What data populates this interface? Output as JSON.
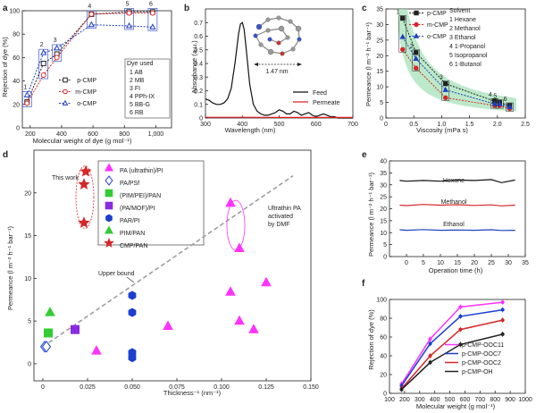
{
  "panel_labels": [
    "a",
    "b",
    "c",
    "d",
    "e",
    "f"
  ],
  "colors": {
    "pCMP": "#222222",
    "mCMP": "#d62728",
    "oCMP": "#1f3fbf",
    "pink": "#ff33ff",
    "blue": "#1b3fcf",
    "green": "#33cc33",
    "purple": "#8a2be2",
    "red": "#d62728",
    "band": "#9fe0b4"
  },
  "chart_data": [
    {
      "id": "a",
      "type": "line",
      "xlabel": "Molecular weight of dye (g mol⁻¹)",
      "ylabel": "Rejection of dye (%)",
      "xlim": [
        150,
        1100
      ],
      "ylim": [
        0,
        100
      ],
      "xticks": [
        200,
        400,
        600,
        800,
        1000
      ],
      "xtick_labels": [
        "200",
        "400",
        "600",
        "800",
        "1,000"
      ],
      "yticks": [
        0,
        20,
        40,
        60,
        80,
        100
      ],
      "dye_x": [
        180,
        285,
        370,
        590,
        830,
        980
      ],
      "dye_numbers": [
        "1",
        "2",
        "3",
        "4",
        "5",
        "6"
      ],
      "legend_title": "Dye used",
      "dye_list": [
        "1 AB",
        "2 MB",
        "3 FI",
        "4 PPh-IX",
        "5 BB-G",
        "6 RB"
      ],
      "series": [
        {
          "name": "p-CMP",
          "color": "#222222",
          "marker": "square",
          "values": [
            22,
            55,
            63,
            97,
            99,
            99
          ]
        },
        {
          "name": "m-CMP",
          "color": "#d62728",
          "marker": "circle",
          "values": [
            21,
            45,
            60,
            97,
            98,
            98
          ]
        },
        {
          "name": "o-CMP",
          "color": "#1f3fbf",
          "marker": "triangle",
          "values": [
            28,
            64,
            68,
            88,
            87,
            86
          ]
        }
      ]
    },
    {
      "id": "b",
      "type": "line",
      "xlabel": "Wavelength (nm)",
      "ylabel": "Absorbance (a.u.)",
      "xlim": [
        300,
        700
      ],
      "ylim": [
        0,
        0.8
      ],
      "xticks": [
        300,
        400,
        500,
        600,
        700
      ],
      "yticks": [
        0,
        0.1,
        0.2,
        0.3,
        0.4,
        0.5,
        0.6,
        0.7
      ],
      "annotation": "1.47 nm",
      "series": [
        {
          "name": "Feed",
          "color": "#111111",
          "x": [
            300,
            310,
            320,
            330,
            340,
            350,
            360,
            370,
            380,
            390,
            395,
            400,
            405,
            410,
            420,
            430,
            440,
            450,
            460,
            470,
            480,
            490,
            500,
            510,
            520,
            530,
            540,
            550,
            560,
            570,
            580,
            590,
            600,
            610,
            620,
            630,
            640,
            650,
            660,
            680,
            700
          ],
          "values": [
            0.14,
            0.13,
            0.11,
            0.1,
            0.1,
            0.11,
            0.14,
            0.22,
            0.4,
            0.62,
            0.69,
            0.7,
            0.65,
            0.52,
            0.25,
            0.1,
            0.05,
            0.03,
            0.02,
            0.02,
            0.03,
            0.04,
            0.06,
            0.05,
            0.03,
            0.03,
            0.05,
            0.04,
            0.02,
            0.03,
            0.04,
            0.02,
            0.01,
            0.02,
            0.03,
            0.02,
            0.01,
            0.01,
            0.0,
            0.0,
            0.0
          ]
        },
        {
          "name": "Permeate",
          "color": "#e02020",
          "x": [
            300,
            400,
            500,
            600,
            700
          ],
          "values": [
            0.005,
            0.005,
            0.004,
            0.004,
            0.004
          ]
        }
      ]
    },
    {
      "id": "c",
      "type": "scatter",
      "xlabel": "Viscosity (mPa s)",
      "ylabel": "Permeance (l m⁻² h⁻¹ bar⁻¹)",
      "xlim": [
        0,
        2.5
      ],
      "ylim": [
        0,
        35
      ],
      "xticks": [
        0,
        0.5,
        1.0,
        1.5,
        2.0,
        2.5
      ],
      "xtick_labels": [
        "0",
        "0.5",
        "1.0",
        "1.5",
        "2.0",
        "2.5"
      ],
      "yticks": [
        0,
        5,
        10,
        15,
        20,
        25,
        30,
        35
      ],
      "legend_title": "Solvent",
      "solvent_list": [
        "1 Hexane",
        "2 Methanol",
        "3 Ethanol",
        "4 1-Propanol",
        "5 Isopropanol",
        "6 1-Butanol"
      ],
      "solvent_x": [
        0.3,
        0.54,
        1.07,
        1.95,
        2.04,
        2.22
      ],
      "solvent_numbers": [
        "1",
        "2",
        "3",
        "4",
        "5",
        "6"
      ],
      "series": [
        {
          "name": "p-CMP",
          "color": "#222222",
          "values": [
            32,
            21,
            11,
            5.4,
            5,
            4
          ]
        },
        {
          "name": "m-CMP",
          "color": "#d62728",
          "values": [
            22,
            16,
            6.5,
            4,
            4,
            3
          ]
        },
        {
          "name": "o-CMP",
          "color": "#1f3fbf",
          "values": [
            26,
            19,
            9,
            4.5,
            4.5,
            3.5
          ]
        }
      ],
      "fit_curve": {
        "a": 9.8,
        "b": -0.2
      }
    },
    {
      "id": "d",
      "type": "scatter",
      "xlabel": "Thickness⁻¹ (nm⁻¹)",
      "ylabel": "Permeance (l m⁻² h⁻¹ bar⁻¹)",
      "xlim": [
        -0.005,
        0.15
      ],
      "ylim": [
        -2,
        25
      ],
      "xticks": [
        0,
        0.025,
        0.05,
        0.075,
        0.1,
        0.125,
        0.15
      ],
      "xtick_labels": [
        "0",
        "0.025",
        "0.050",
        "0.075",
        "0.100",
        "0.125",
        "0.150"
      ],
      "yticks": [
        0,
        5,
        10,
        15,
        20
      ],
      "annotations": [
        "This work",
        "Ultrathin PA activated by DMF",
        "Upper bound"
      ],
      "upper_bound": [
        [
          0,
          2
        ],
        [
          0.14,
          22
        ]
      ],
      "series": [
        {
          "name": "PA (ultrathin)/PI",
          "marker": "triangle",
          "color": "#ff33ff",
          "points": [
            [
              0.03,
              1.5
            ],
            [
              0.07,
              4.4
            ],
            [
              0.105,
              8.4
            ],
            [
              0.11,
              5
            ],
            [
              0.118,
              4
            ],
            [
              0.125,
              9.5
            ],
            [
              0.11,
              13.5
            ],
            [
              0.105,
              18.8
            ]
          ]
        },
        {
          "name": "PA/PSf",
          "marker": "diamond",
          "color": "#1b3fcf",
          "points": [
            [
              0.001,
              2
            ],
            [
              0.002,
              2
            ]
          ]
        },
        {
          "name": "(PIM/PEI)/PAN",
          "marker": "square",
          "color": "#33cc33",
          "points": [
            [
              0.003,
              3.6
            ]
          ]
        },
        {
          "name": "(PA/MOF)/PI",
          "marker": "square",
          "color": "#8a2be2",
          "points": [
            [
              0.018,
              4
            ]
          ]
        },
        {
          "name": "PAR/PI",
          "marker": "hexagon",
          "color": "#1b3fcf",
          "points": [
            [
              0.05,
              8
            ],
            [
              0.05,
              6
            ],
            [
              0.05,
              1.3
            ],
            [
              0.05,
              0.7
            ]
          ]
        },
        {
          "name": "PIM/PAN",
          "marker": "triangle",
          "color": "#33cc33",
          "points": [
            [
              0.004,
              6
            ]
          ]
        },
        {
          "name": "CMP/PAN",
          "marker": "star",
          "color": "#d62728",
          "points": [
            [
              0.024,
              22.5
            ],
            [
              0.023,
              21
            ],
            [
              0.023,
              16.5
            ]
          ]
        }
      ]
    },
    {
      "id": "e",
      "type": "line",
      "xlabel": "Operation time (h)",
      "ylabel": "Permeance (l m⁻² h⁻¹ bar⁻¹)",
      "xlim": [
        -5,
        35
      ],
      "ylim": [
        0,
        40
      ],
      "xticks": [
        0,
        5,
        10,
        15,
        20,
        25,
        30,
        35
      ],
      "yticks": [
        0,
        5,
        10,
        15,
        20,
        25,
        30,
        35,
        40
      ],
      "series": [
        {
          "name": "Hexane",
          "color": "#111111",
          "x": [
            -2,
            0,
            5,
            10,
            15,
            20,
            25,
            28,
            32
          ],
          "values": [
            31.8,
            31.5,
            31.8,
            31.5,
            32,
            31.8,
            32.2,
            30.9,
            32
          ]
        },
        {
          "name": "Methanol",
          "color": "#d62728",
          "x": [
            -2,
            0,
            5,
            10,
            15,
            20,
            25,
            28,
            32
          ],
          "values": [
            21.5,
            21.3,
            21.8,
            21.5,
            21.7,
            21.4,
            21.6,
            21.2,
            21.5
          ]
        },
        {
          "name": "Ethanol",
          "color": "#1f3fbf",
          "x": [
            -2,
            0,
            5,
            10,
            15,
            20,
            25,
            28,
            32
          ],
          "values": [
            11.2,
            11,
            11.3,
            11,
            11.1,
            11,
            11.2,
            10.9,
            11
          ]
        }
      ]
    },
    {
      "id": "f",
      "type": "line",
      "xlabel": "Molecular weight (g mol⁻¹)",
      "ylabel": "Rejection of dye (%)",
      "xlim": [
        100,
        1000
      ],
      "ylim": [
        0,
        100
      ],
      "xticks": [
        100,
        200,
        300,
        400,
        500,
        600,
        700,
        800,
        900,
        1000
      ],
      "yticks": [
        0,
        20,
        40,
        60,
        80,
        100
      ],
      "x": [
        180,
        370,
        570,
        850
      ],
      "series": [
        {
          "name": "p-CMP-OOC11",
          "color": "#ff33ff",
          "values": [
            10,
            58,
            92,
            97
          ]
        },
        {
          "name": "p-CMP-OOC7",
          "color": "#1b3fcf",
          "values": [
            8,
            53,
            82,
            89
          ]
        },
        {
          "name": "p-CMP-OOC2",
          "color": "#d62728",
          "values": [
            5,
            40,
            68,
            78
          ]
        },
        {
          "name": "p-CMP-OH",
          "color": "#222222",
          "values": [
            4,
            33,
            52,
            63
          ]
        }
      ]
    }
  ]
}
